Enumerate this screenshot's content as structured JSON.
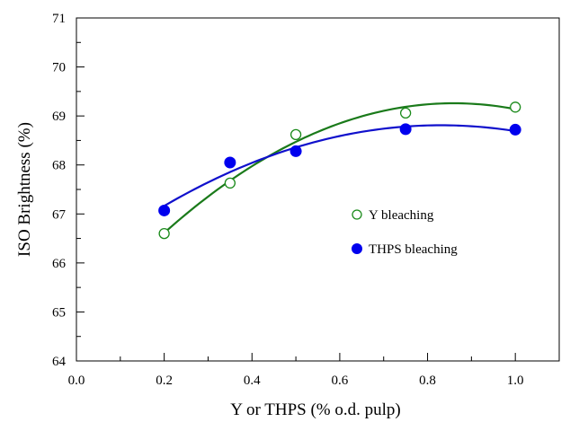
{
  "chart_data": {
    "type": "scatter",
    "xlabel": "Y or THPS (% o.d. pulp)",
    "ylabel": "ISO Brightness (%)",
    "xlim": [
      0.0,
      1.1
    ],
    "ylim": [
      64,
      71
    ],
    "x_ticks": [
      0.0,
      0.2,
      0.4,
      0.6,
      0.8,
      1.0
    ],
    "x_tick_labels": [
      "0.0",
      "0.2",
      "0.4",
      "0.6",
      "0.8",
      "1.0"
    ],
    "y_ticks": [
      64,
      65,
      66,
      67,
      68,
      69,
      70,
      71
    ],
    "y_tick_labels": [
      "64",
      "65",
      "66",
      "67",
      "68",
      "69",
      "70",
      "71"
    ],
    "grid": false,
    "legend_position": "center-right",
    "series": [
      {
        "name": "Y bleaching",
        "marker": "open-circle",
        "color": "#1a8a1a",
        "fit_color": "#1a7a1a",
        "x": [
          0.2,
          0.35,
          0.5,
          0.75,
          1.0
        ],
        "y": [
          66.6,
          67.63,
          68.62,
          69.06,
          69.18
        ]
      },
      {
        "name": "THPS bleaching",
        "marker": "filled-circle",
        "color": "#0000ee",
        "fit_color": "#1010cc",
        "x": [
          0.2,
          0.35,
          0.5,
          0.75,
          1.0
        ],
        "y": [
          67.07,
          68.05,
          68.28,
          68.73,
          68.72
        ]
      }
    ]
  }
}
